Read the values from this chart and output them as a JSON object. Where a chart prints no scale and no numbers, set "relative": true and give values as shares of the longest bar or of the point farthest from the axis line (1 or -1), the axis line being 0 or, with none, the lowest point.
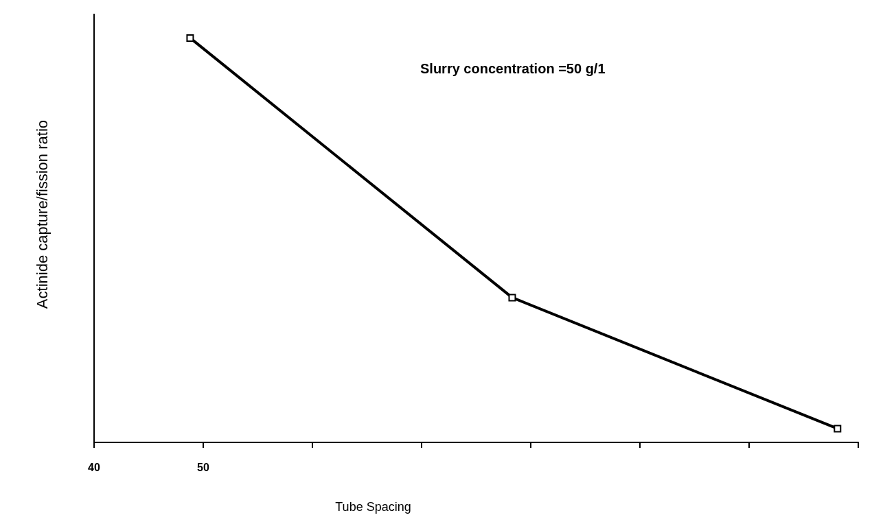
{
  "chart_data": {
    "type": "line",
    "xlabel": "Tube Spacing",
    "ylabel": "Actinide capture/fission ratio",
    "annotations": [
      "Slurry concentration =50 g/1"
    ],
    "relative": true,
    "x": [
      48.8,
      78.3,
      108.1
    ],
    "series": [
      {
        "color": "#000000",
        "values": [
          1,
          0.358,
          0.034
        ]
      }
    ],
    "xlim": [
      40,
      110
    ],
    "xticks": [
      40,
      50,
      {
        "value": 60,
        "label": null
      },
      {
        "value": 70,
        "label": null
      },
      {
        "value": 80,
        "label": null
      },
      {
        "value": 90,
        "label": null
      },
      {
        "value": 100,
        "label": null
      },
      {
        "value": 110,
        "label": null
      }
    ],
    "marker": "square",
    "line_style": "solid",
    "grid": false
  }
}
